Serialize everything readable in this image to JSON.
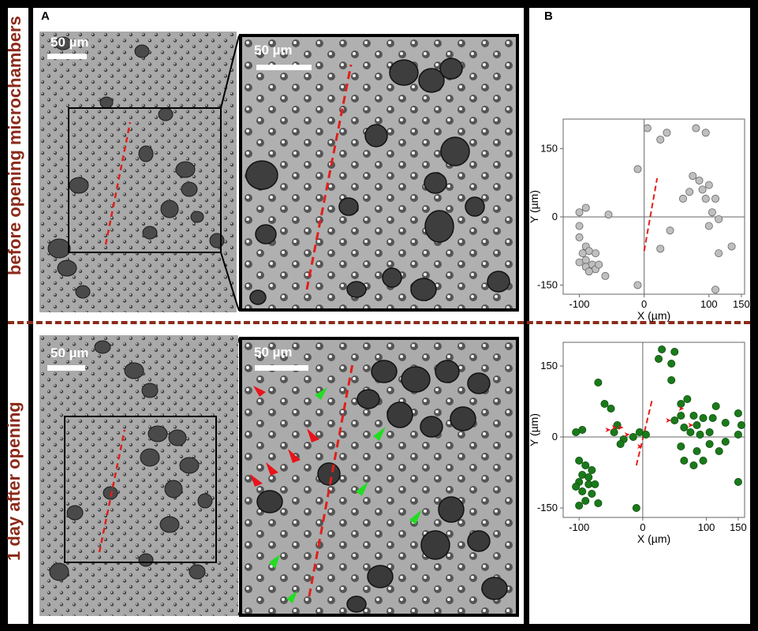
{
  "panel_labels": {
    "a": "A",
    "b": "B"
  },
  "row_labels": {
    "top": "before opening microchambers",
    "bottom": "1 day after opening"
  },
  "scale_bar_label": "50 µm",
  "colors": {
    "label_red": "#8b2a1a",
    "dash_red": "#e0201a",
    "arrow_red": "#e8141a",
    "arrow_green": "#22dd22",
    "before_marker": "#bfbfbf",
    "after_marker": "#1a7a1a"
  },
  "chart_data": [
    {
      "type": "scatter",
      "title": "",
      "xlabel": "X (µm)",
      "ylabel": "Y (µm)",
      "xlim": [
        -125,
        155
      ],
      "ylim": [
        -170,
        215
      ],
      "xticks": [
        -100,
        0,
        100,
        150
      ],
      "yticks": [
        -150,
        0,
        150
      ],
      "grid": false,
      "crosshair_at_origin": true,
      "marker_color": "#bfbfbf",
      "cut_line": {
        "x1": 0,
        "y1": -75,
        "x2": 20,
        "y2": 85
      },
      "points": [
        [
          -100,
          10
        ],
        [
          -90,
          20
        ],
        [
          -100,
          -20
        ],
        [
          -100,
          -45
        ],
        [
          -90,
          -65
        ],
        [
          -85,
          -75
        ],
        [
          -95,
          -80
        ],
        [
          -100,
          -100
        ],
        [
          -75,
          -80
        ],
        [
          -90,
          -95
        ],
        [
          -90,
          -110
        ],
        [
          -80,
          -105
        ],
        [
          -75,
          -115
        ],
        [
          -70,
          -105
        ],
        [
          -85,
          -120
        ],
        [
          -60,
          -130
        ],
        [
          -55,
          5
        ],
        [
          -10,
          -150
        ],
        [
          -10,
          105
        ],
        [
          5,
          195
        ],
        [
          25,
          170
        ],
        [
          35,
          185
        ],
        [
          80,
          195
        ],
        [
          95,
          185
        ],
        [
          60,
          40
        ],
        [
          70,
          55
        ],
        [
          75,
          90
        ],
        [
          85,
          80
        ],
        [
          90,
          60
        ],
        [
          95,
          40
        ],
        [
          100,
          70
        ],
        [
          110,
          40
        ],
        [
          105,
          10
        ],
        [
          100,
          -20
        ],
        [
          115,
          -5
        ],
        [
          115,
          -80
        ],
        [
          110,
          -160
        ],
        [
          135,
          -65
        ],
        [
          25,
          -70
        ],
        [
          40,
          -30
        ]
      ]
    },
    {
      "type": "scatter",
      "title": "",
      "xlabel": "X (µm)",
      "ylabel": "Y (µm)",
      "xlim": [
        -125,
        160
      ],
      "ylim": [
        -170,
        200
      ],
      "xticks": [
        -100,
        0,
        100,
        150
      ],
      "yticks": [
        -150,
        0,
        150
      ],
      "grid": false,
      "crosshair_at_origin": true,
      "marker_color": "#1a7a1a",
      "cut_line": {
        "x1": -10,
        "y1": -60,
        "x2": 15,
        "y2": 80
      },
      "arrowheads": [
        [
          -55,
          15
        ],
        [
          -45,
          20
        ],
        [
          -35,
          20
        ],
        [
          -25,
          5
        ],
        [
          -5,
          -20
        ],
        [
          40,
          35
        ],
        [
          60,
          60
        ],
        [
          75,
          25
        ]
      ],
      "points": [
        [
          -95,
          15
        ],
        [
          -105,
          10
        ],
        [
          -70,
          115
        ],
        [
          -60,
          70
        ],
        [
          -50,
          60
        ],
        [
          -40,
          25
        ],
        [
          -45,
          10
        ],
        [
          -30,
          -5
        ],
        [
          -15,
          0
        ],
        [
          -35,
          -15
        ],
        [
          -5,
          10
        ],
        [
          5,
          5
        ],
        [
          25,
          165
        ],
        [
          30,
          185
        ],
        [
          45,
          155
        ],
        [
          50,
          180
        ],
        [
          45,
          120
        ],
        [
          60,
          70
        ],
        [
          70,
          80
        ],
        [
          60,
          45
        ],
        [
          50,
          35
        ],
        [
          65,
          20
        ],
        [
          80,
          45
        ],
        [
          85,
          25
        ],
        [
          95,
          40
        ],
        [
          75,
          10
        ],
        [
          90,
          5
        ],
        [
          105,
          10
        ],
        [
          110,
          40
        ],
        [
          115,
          65
        ],
        [
          130,
          30
        ],
        [
          150,
          50
        ],
        [
          155,
          25
        ],
        [
          150,
          5
        ],
        [
          130,
          -10
        ],
        [
          105,
          -15
        ],
        [
          120,
          -30
        ],
        [
          85,
          -30
        ],
        [
          60,
          -20
        ],
        [
          65,
          -50
        ],
        [
          80,
          -60
        ],
        [
          95,
          -50
        ],
        [
          150,
          -95
        ],
        [
          -100,
          -50
        ],
        [
          -90,
          -60
        ],
        [
          -80,
          -70
        ],
        [
          -95,
          -80
        ],
        [
          -85,
          -85
        ],
        [
          -100,
          -95
        ],
        [
          -85,
          -100
        ],
        [
          -75,
          -100
        ],
        [
          -105,
          -105
        ],
        [
          -95,
          -115
        ],
        [
          -80,
          -120
        ],
        [
          -90,
          -135
        ],
        [
          -100,
          -145
        ],
        [
          -70,
          -140
        ],
        [
          -10,
          -150
        ]
      ]
    }
  ]
}
